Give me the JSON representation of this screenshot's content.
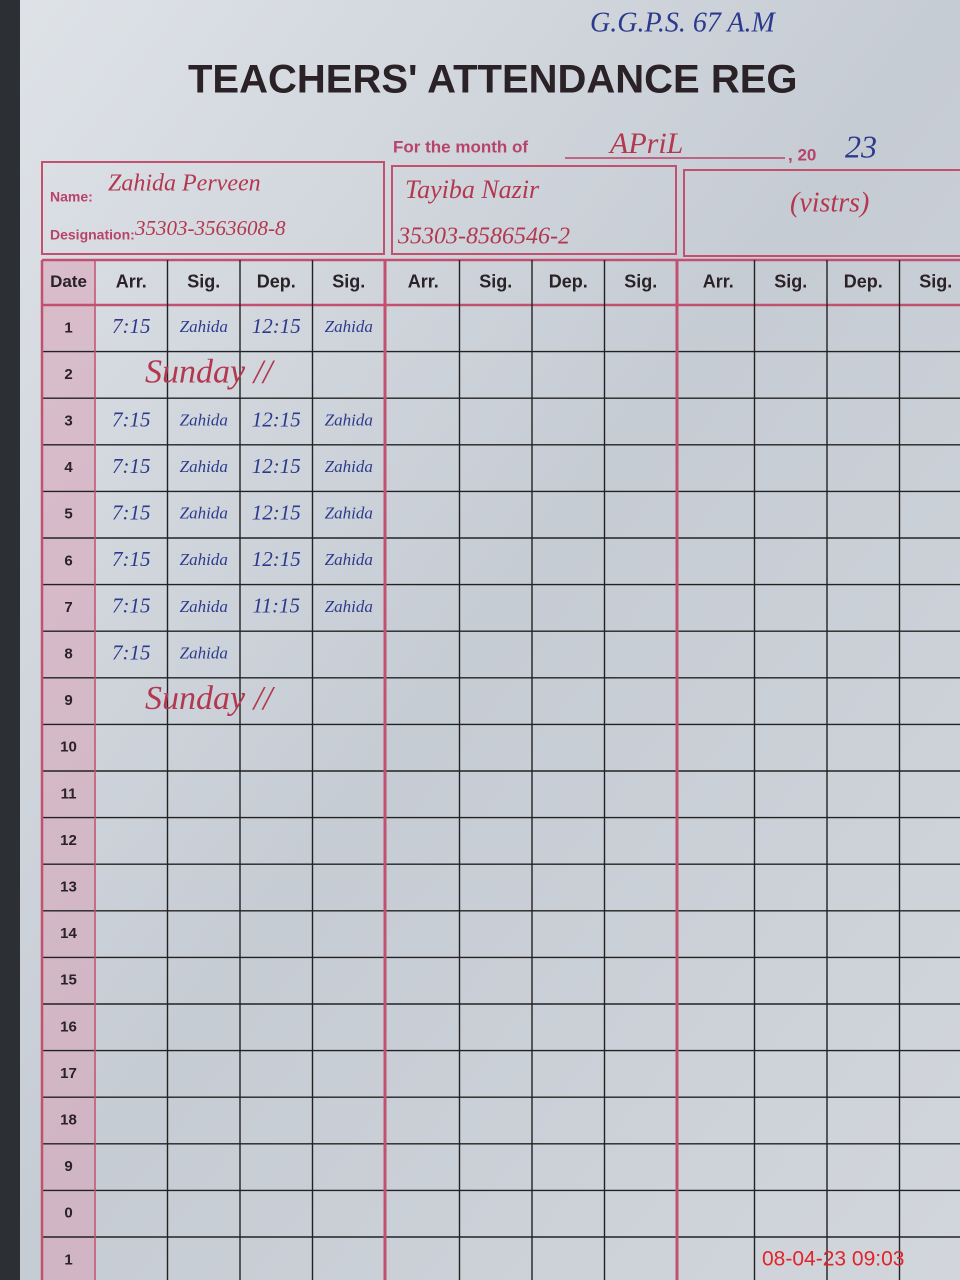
{
  "header": {
    "school": "G.G.P.S. 67 A.M",
    "title": "TEACHERS' ATTENDANCE REG",
    "month_label": "For the month of",
    "month": "APriL",
    "year_prefix": ", 20",
    "year": "23",
    "name_label": "Name:",
    "designation_label": "Designation:"
  },
  "teachers": [
    {
      "name": "Zahida Perveen",
      "designation": "35303-3563608-8"
    },
    {
      "name": "Tayiba Nazir",
      "designation": "35303-8586546-2"
    },
    {
      "name": "(vistrs)"
    }
  ],
  "table": {
    "date_header": "Date",
    "columns": [
      "Arr.",
      "Sig.",
      "Dep.",
      "Sig."
    ],
    "rows": [
      {
        "date": "1",
        "entries": [
          "7:15",
          "Zahida",
          "12:15",
          "Zahida"
        ]
      },
      {
        "date": "2",
        "note": "Sunday //"
      },
      {
        "date": "3",
        "entries": [
          "7:15",
          "Zahida",
          "12:15",
          "Zahida"
        ]
      },
      {
        "date": "4",
        "entries": [
          "7:15",
          "Zahida",
          "12:15",
          "Zahida"
        ]
      },
      {
        "date": "5",
        "entries": [
          "7:15",
          "Zahida",
          "12:15",
          "Zahida"
        ]
      },
      {
        "date": "6",
        "entries": [
          "7:15",
          "Zahida",
          "12:15",
          "Zahida"
        ]
      },
      {
        "date": "7",
        "entries": [
          "7:15",
          "Zahida",
          "11:15",
          "Zahida"
        ]
      },
      {
        "date": "8",
        "entries": [
          "7:15",
          "Zahida"
        ]
      },
      {
        "date": "9",
        "note": "Sunday //"
      },
      {
        "date": "10"
      },
      {
        "date": "11"
      },
      {
        "date": "12"
      },
      {
        "date": "13"
      },
      {
        "date": "14"
      },
      {
        "date": "15"
      },
      {
        "date": "16"
      },
      {
        "date": "17"
      },
      {
        "date": "18"
      },
      {
        "date": "9"
      },
      {
        "date": "0"
      },
      {
        "date": "1"
      }
    ]
  },
  "timestamp": "08-04-23 09:03"
}
